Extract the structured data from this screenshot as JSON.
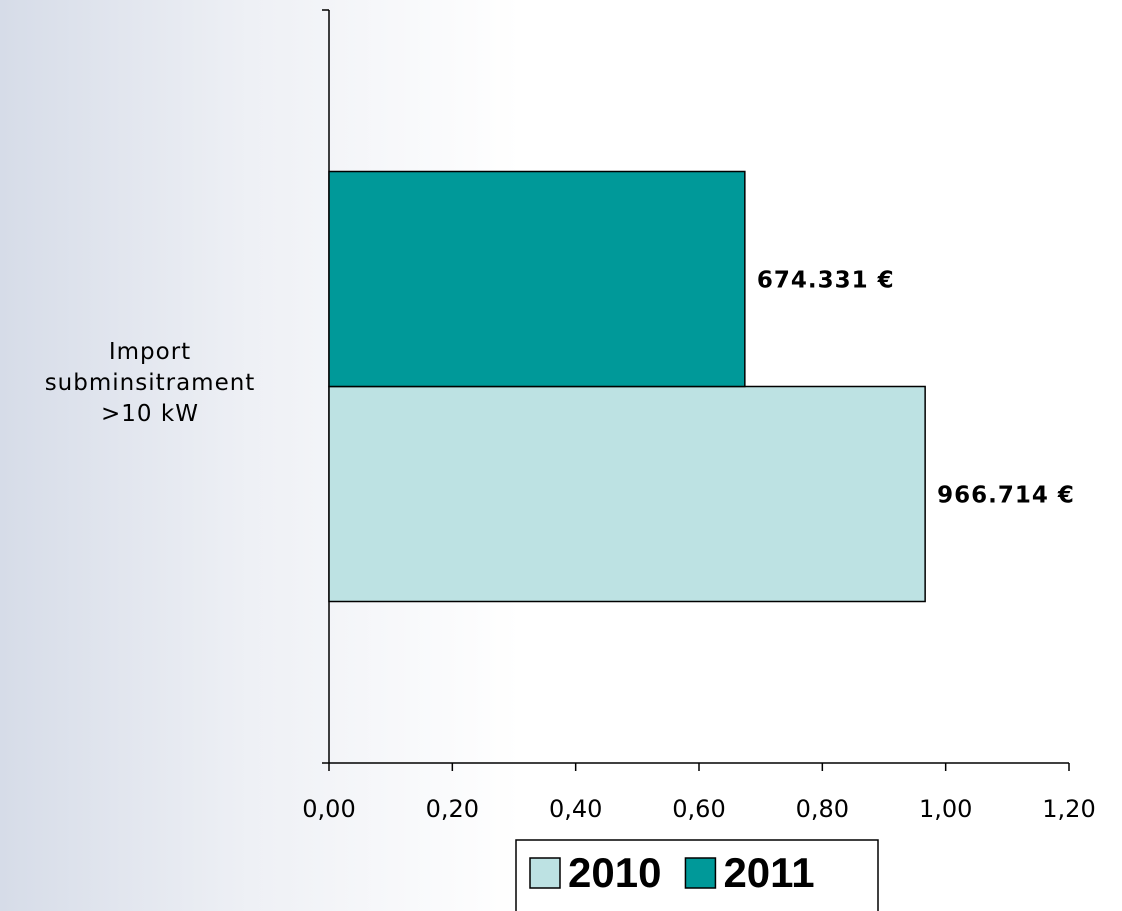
{
  "chart_data": {
    "type": "horizontal_bar",
    "categories": [
      "Import subminsitrament >10 kW"
    ],
    "series": [
      {
        "name": "2010",
        "color": "#bde2e3",
        "values": [
          0.966714
        ],
        "value_labels": [
          "966.714 €"
        ]
      },
      {
        "name": "2011",
        "color": "#009999",
        "values": [
          0.674331
        ],
        "value_labels": [
          "674.331 €"
        ]
      }
    ],
    "xlim": [
      0,
      1.2
    ],
    "xticks": [
      {
        "value": 0,
        "label": "0,00"
      },
      {
        "value": 0.2,
        "label": "0,20"
      },
      {
        "value": 0.4,
        "label": "0,40"
      },
      {
        "value": 0.6,
        "label": "0,60"
      },
      {
        "value": 0.8,
        "label": "0,80"
      },
      {
        "value": 1.0,
        "label": "1,00"
      },
      {
        "value": 1.2,
        "label": "1,20"
      }
    ],
    "legend": "bottom"
  }
}
